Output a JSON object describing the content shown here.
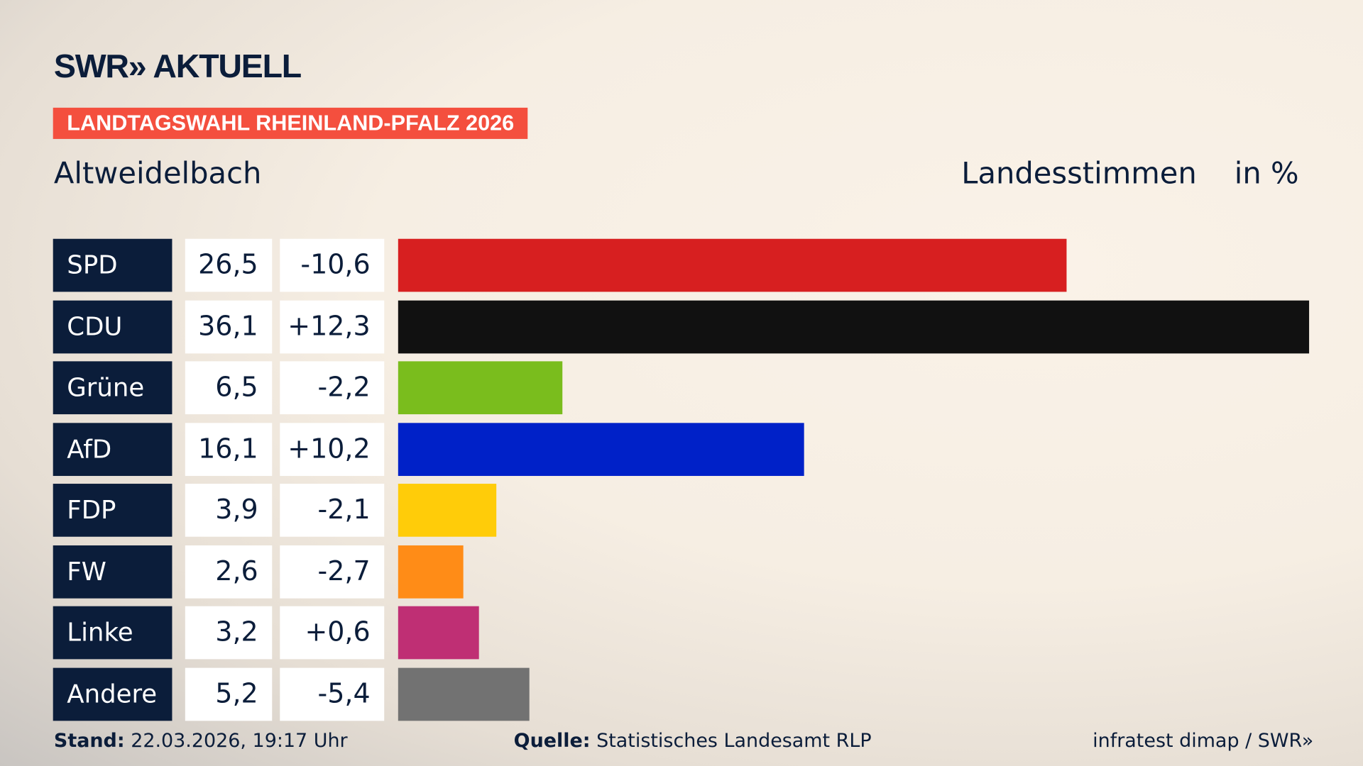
{
  "logo": "SWR» AKTUELL",
  "tag": "LANDTAGSWAHL RHEINLAND-PFALZ 2026",
  "place": "Altweidelbach",
  "measure": "Landesstimmen",
  "unit": "in %",
  "chart_data": {
    "type": "bar",
    "orientation": "horizontal",
    "categories": [
      "SPD",
      "CDU",
      "Grüne",
      "AfD",
      "FDP",
      "FW",
      "Linke",
      "Andere"
    ],
    "values": [
      "26,5",
      "36,1",
      "6,5",
      "16,1",
      "3,9",
      "2,6",
      "3,2",
      "5,2"
    ],
    "numeric_values": [
      26.5,
      36.1,
      6.5,
      16.1,
      3.9,
      2.6,
      3.2,
      5.2
    ],
    "changes": [
      "-10,6",
      "+12,3",
      "-2,2",
      "+10,2",
      "-2,1",
      "-2,7",
      "+0,6",
      "-5,4"
    ],
    "colors": [
      "#d71f20",
      "#111111",
      "#7abd1d",
      "#0021c8",
      "#ffcc09",
      "#ff8c17",
      "#bf2f74",
      "#727272"
    ]
  },
  "footer": {
    "stand_label": "Stand:",
    "stand": "22.03.2026, 19:17 Uhr",
    "source_label": "Quelle:",
    "source": "Statistisches Landesamt RLP",
    "credit": "infratest dimap / SWR»"
  }
}
